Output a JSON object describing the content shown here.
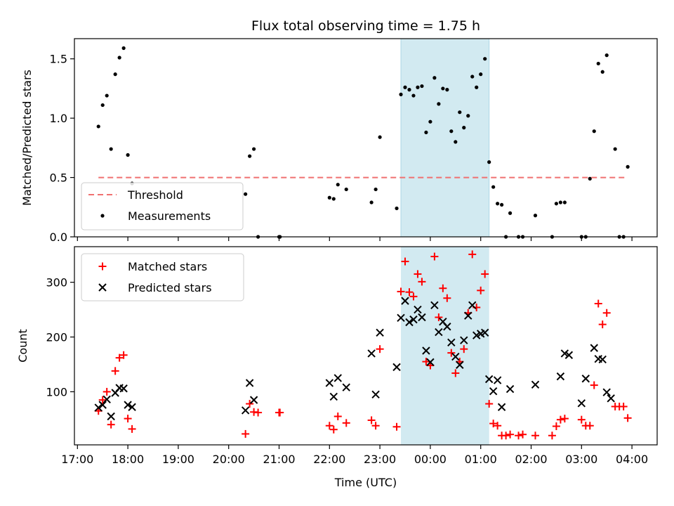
{
  "figure": {
    "title": "Flux total observing time = 1.75 h",
    "xlabel": "Time (UTC)"
  },
  "colors": {
    "highlight": "#add8e6",
    "threshold": "#f07070",
    "measurement": "#000000",
    "matched": "#ff0000",
    "predicted": "#000000"
  },
  "chart_data": [
    {
      "type": "scatter",
      "ylabel": "Matched/Predicted stars",
      "ylim": [
        0,
        1.67
      ],
      "yticks": [
        0.0,
        0.5,
        1.0,
        1.5
      ],
      "ytick_labels": [
        "0.0",
        "0.5",
        "1.0",
        "1.5"
      ],
      "xlim_hours": [
        16.94,
        28.5
      ],
      "highlight_band": [
        "23:25",
        "01:10"
      ],
      "legend": {
        "placement": "lower left",
        "entries": [
          "Threshold",
          "Measurements"
        ]
      },
      "threshold": {
        "name": "Threshold",
        "value": 0.5,
        "x_range": [
          "17:25",
          "03:55"
        ]
      },
      "series": [
        {
          "name": "Measurements",
          "points": [
            [
              "17:25",
              0.93
            ],
            [
              "17:30",
              1.11
            ],
            [
              "17:35",
              1.19
            ],
            [
              "17:40",
              0.74
            ],
            [
              "17:45",
              1.37
            ],
            [
              "17:50",
              1.51
            ],
            [
              "17:55",
              1.59
            ],
            [
              "18:00",
              0.69
            ],
            [
              "18:05",
              0.45
            ],
            [
              "20:20",
              0.36
            ],
            [
              "20:25",
              0.68
            ],
            [
              "20:30",
              0.74
            ],
            [
              "20:35",
              0.0
            ],
            [
              "21:00",
              0.0
            ],
            [
              "21:01",
              0.0
            ],
            [
              "22:00",
              0.33
            ],
            [
              "22:05",
              0.32
            ],
            [
              "22:10",
              0.44
            ],
            [
              "22:20",
              0.4
            ],
            [
              "22:50",
              0.29
            ],
            [
              "22:55",
              0.4
            ],
            [
              "23:00",
              0.84
            ],
            [
              "23:20",
              0.24
            ],
            [
              "23:25",
              1.2
            ],
            [
              "23:30",
              1.26
            ],
            [
              "23:35",
              1.24
            ],
            [
              "23:40",
              1.19
            ],
            [
              "23:45",
              1.26
            ],
            [
              "23:50",
              1.27
            ],
            [
              "23:55",
              0.88
            ],
            [
              "00:00",
              0.97
            ],
            [
              "00:05",
              1.34
            ],
            [
              "00:10",
              1.12
            ],
            [
              "00:15",
              1.25
            ],
            [
              "00:20",
              1.24
            ],
            [
              "00:25",
              0.89
            ],
            [
              "00:30",
              0.8
            ],
            [
              "00:35",
              1.05
            ],
            [
              "00:40",
              0.92
            ],
            [
              "00:45",
              1.02
            ],
            [
              "00:50",
              1.35
            ],
            [
              "00:55",
              1.26
            ],
            [
              "01:00",
              1.37
            ],
            [
              "01:05",
              1.5
            ],
            [
              "01:10",
              0.63
            ],
            [
              "01:15",
              0.42
            ],
            [
              "01:20",
              0.28
            ],
            [
              "01:25",
              0.27
            ],
            [
              "01:30",
              0.0
            ],
            [
              "01:35",
              0.2
            ],
            [
              "01:45",
              0.0
            ],
            [
              "01:50",
              0.0
            ],
            [
              "02:05",
              0.18
            ],
            [
              "02:25",
              0.0
            ],
            [
              "02:30",
              0.28
            ],
            [
              "02:35",
              0.29
            ],
            [
              "02:40",
              0.29
            ],
            [
              "03:00",
              0.0
            ],
            [
              "03:05",
              0.0
            ],
            [
              "03:10",
              0.49
            ],
            [
              "03:15",
              0.89
            ],
            [
              "03:20",
              1.46
            ],
            [
              "03:25",
              1.39
            ],
            [
              "03:30",
              1.53
            ],
            [
              "03:40",
              0.74
            ],
            [
              "03:45",
              0.0
            ],
            [
              "03:50",
              0.0
            ],
            [
              "03:55",
              0.59
            ]
          ]
        }
      ]
    },
    {
      "type": "scatter",
      "ylabel": "Count",
      "ylim": [
        3,
        365
      ],
      "yticks": [
        100,
        200,
        300
      ],
      "ytick_labels": [
        "100",
        "200",
        "300"
      ],
      "xlim_hours": [
        16.94,
        28.5
      ],
      "highlight_band": [
        "23:25",
        "01:10"
      ],
      "xticks": [
        "17:00",
        "18:00",
        "19:00",
        "20:00",
        "21:00",
        "22:00",
        "23:00",
        "00:00",
        "01:00",
        "02:00",
        "03:00",
        "04:00"
      ],
      "legend": {
        "placement": "top-left",
        "entries": [
          "Matched stars",
          "Predicted stars"
        ]
      },
      "series": [
        {
          "name": "Matched stars",
          "marker": "plus",
          "points": [
            [
              "17:25",
              65
            ],
            [
              "17:30",
              85
            ],
            [
              "17:35",
              100
            ],
            [
              "17:40",
              40
            ],
            [
              "17:45",
              138
            ],
            [
              "17:50",
              162
            ],
            [
              "17:55",
              167
            ],
            [
              "18:00",
              51
            ],
            [
              "18:05",
              32
            ],
            [
              "20:20",
              23
            ],
            [
              "20:25",
              78
            ],
            [
              "20:30",
              63
            ],
            [
              "20:35",
              62
            ],
            [
              "21:00",
              62
            ],
            [
              "21:01",
              62
            ],
            [
              "22:00",
              38
            ],
            [
              "22:05",
              31
            ],
            [
              "22:10",
              55
            ],
            [
              "22:20",
              43
            ],
            [
              "22:50",
              48
            ],
            [
              "22:55",
              38
            ],
            [
              "23:00",
              178
            ],
            [
              "23:20",
              36
            ],
            [
              "23:25",
              283
            ],
            [
              "23:30",
              338
            ],
            [
              "23:35",
              282
            ],
            [
              "23:40",
              274
            ],
            [
              "23:45",
              315
            ],
            [
              "23:50",
              301
            ],
            [
              "23:55",
              155
            ],
            [
              "00:00",
              148
            ],
            [
              "00:05",
              347
            ],
            [
              "00:10",
              236
            ],
            [
              "00:15",
              289
            ],
            [
              "00:20",
              271
            ],
            [
              "00:25",
              171
            ],
            [
              "00:30",
              134
            ],
            [
              "00:35",
              155
            ],
            [
              "00:40",
              178
            ],
            [
              "00:45",
              244
            ],
            [
              "00:50",
              351
            ],
            [
              "00:55",
              254
            ],
            [
              "01:00",
              285
            ],
            [
              "01:05",
              315
            ],
            [
              "01:10",
              78
            ],
            [
              "01:15",
              42
            ],
            [
              "01:20",
              38
            ],
            [
              "01:25",
              20
            ],
            [
              "01:30",
              20
            ],
            [
              "01:35",
              22
            ],
            [
              "01:45",
              20
            ],
            [
              "01:50",
              22
            ],
            [
              "02:05",
              20
            ],
            [
              "02:25",
              20
            ],
            [
              "02:30",
              37
            ],
            [
              "02:35",
              49
            ],
            [
              "02:40",
              51
            ],
            [
              "03:00",
              49
            ],
            [
              "03:05",
              38
            ],
            [
              "03:10",
              38
            ],
            [
              "03:15",
              112
            ],
            [
              "03:20",
              261
            ],
            [
              "03:25",
              223
            ],
            [
              "03:30",
              244
            ],
            [
              "03:40",
              73
            ],
            [
              "03:45",
              73
            ],
            [
              "03:50",
              73
            ],
            [
              "03:55",
              52
            ]
          ]
        },
        {
          "name": "Predicted stars",
          "marker": "x",
          "points": [
            [
              "17:25",
              71
            ],
            [
              "17:30",
              76
            ],
            [
              "17:35",
              86
            ],
            [
              "17:40",
              55
            ],
            [
              "17:45",
              98
            ],
            [
              "17:50",
              107
            ],
            [
              "17:55",
              106
            ],
            [
              "18:00",
              76
            ],
            [
              "18:05",
              72
            ],
            [
              "20:20",
              66
            ],
            [
              "20:25",
              116
            ],
            [
              "20:30",
              85
            ],
            [
              "22:00",
              116
            ],
            [
              "22:05",
              91
            ],
            [
              "22:10",
              125
            ],
            [
              "22:20",
              108
            ],
            [
              "22:50",
              170
            ],
            [
              "22:55",
              95
            ],
            [
              "23:00",
              208
            ],
            [
              "23:20",
              145
            ],
            [
              "23:25",
              235
            ],
            [
              "23:30",
              266
            ],
            [
              "23:35",
              227
            ],
            [
              "23:40",
              232
            ],
            [
              "23:45",
              250
            ],
            [
              "23:50",
              236
            ],
            [
              "23:55",
              175
            ],
            [
              "00:00",
              154
            ],
            [
              "00:05",
              258
            ],
            [
              "00:10",
              209
            ],
            [
              "00:15",
              228
            ],
            [
              "00:20",
              219
            ],
            [
              "00:25",
              190
            ],
            [
              "00:30",
              164
            ],
            [
              "00:35",
              149
            ],
            [
              "00:40",
              194
            ],
            [
              "00:45",
              239
            ],
            [
              "00:50",
              258
            ],
            [
              "00:55",
              203
            ],
            [
              "01:00",
              206
            ],
            [
              "01:05",
              208
            ],
            [
              "01:10",
              123
            ],
            [
              "01:15",
              101
            ],
            [
              "01:20",
              121
            ],
            [
              "01:25",
              72
            ],
            [
              "01:35",
              105
            ],
            [
              "02:05",
              113
            ],
            [
              "02:35",
              128
            ],
            [
              "02:40",
              170
            ],
            [
              "02:45",
              167
            ],
            [
              "03:00",
              79
            ],
            [
              "03:05",
              124
            ],
            [
              "03:15",
              180
            ],
            [
              "03:20",
              160
            ],
            [
              "03:25",
              159
            ],
            [
              "03:30",
              99
            ],
            [
              "03:35",
              88
            ]
          ]
        }
      ]
    }
  ]
}
